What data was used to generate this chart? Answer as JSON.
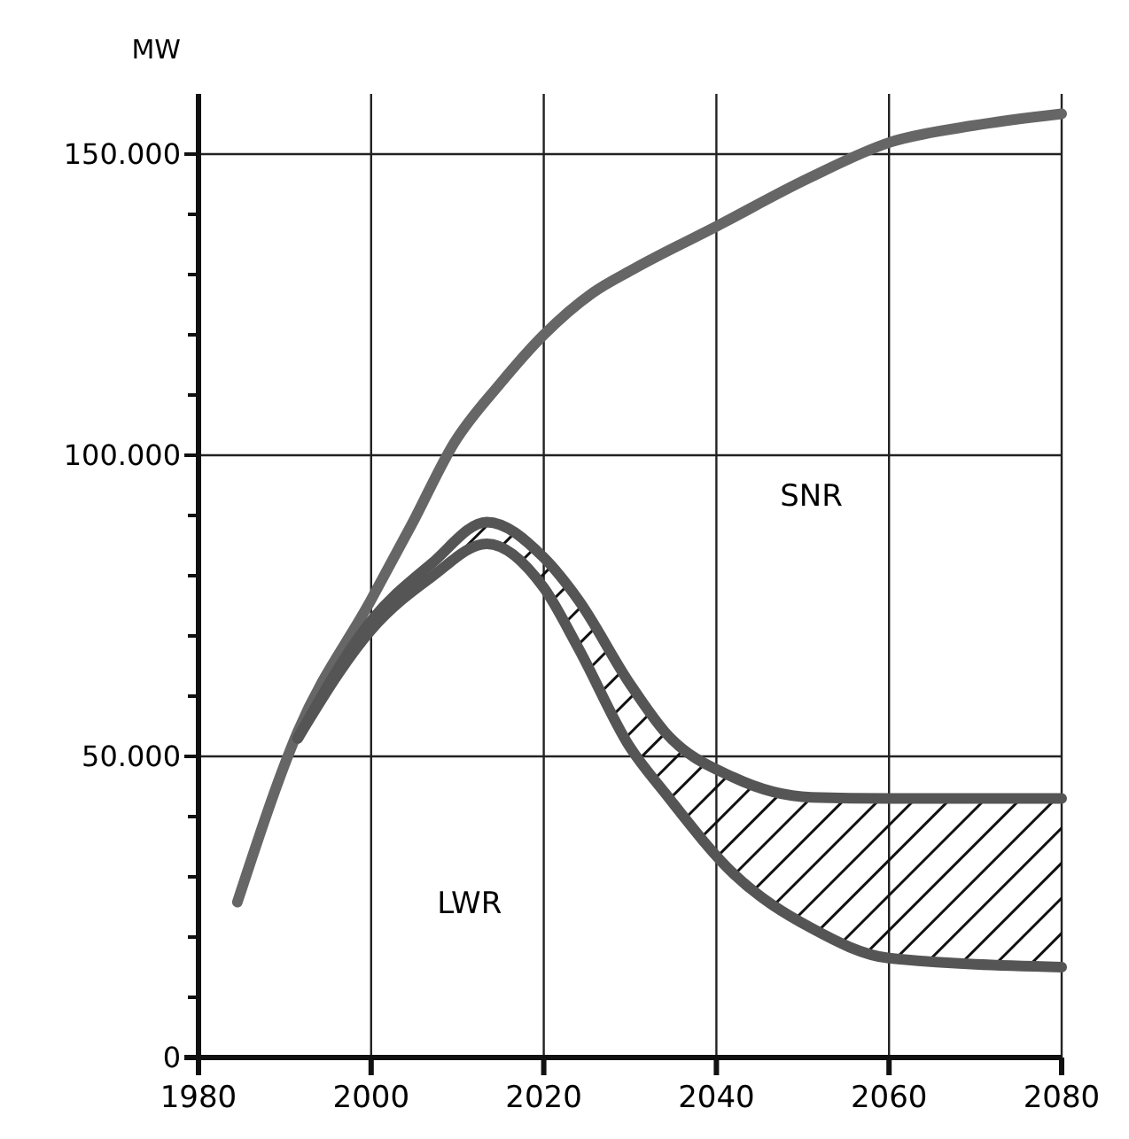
{
  "chart_data": {
    "type": "line",
    "ylabel": "MW",
    "xlim": [
      1980,
      2080
    ],
    "xticks": [
      1980,
      2000,
      2020,
      2040,
      2060,
      2080
    ],
    "ylim": [
      0,
      160000
    ],
    "yticks": [
      {
        "value": 0,
        "label": "0"
      },
      {
        "value": 10000,
        "label": null
      },
      {
        "value": 20000,
        "label": null
      },
      {
        "value": 30000,
        "label": null
      },
      {
        "value": 40000,
        "label": null
      },
      {
        "value": 50000,
        "label": "50.000"
      },
      {
        "value": 60000,
        "label": null
      },
      {
        "value": 70000,
        "label": null
      },
      {
        "value": 80000,
        "label": null
      },
      {
        "value": 90000,
        "label": null
      },
      {
        "value": 100000,
        "label": "100.000"
      },
      {
        "value": 110000,
        "label": null
      },
      {
        "value": 120000,
        "label": null
      },
      {
        "value": 130000,
        "label": null
      },
      {
        "value": 140000,
        "label": null
      },
      {
        "value": 150000,
        "label": "150.000"
      }
    ],
    "grid": true,
    "series": [
      {
        "color": "#666666",
        "x": [
          1984.5,
          1991.5,
          2000,
          2004.7,
          2009.6,
          2014.9,
          2020,
          2025.6,
          2030.5,
          2040,
          2050.7,
          2060.2,
          2069.6,
          2080
        ],
        "values": [
          25800,
          54100,
          76000,
          88500,
          102000,
          111800,
          120000,
          126900,
          131000,
          138000,
          146000,
          152000,
          154700,
          156700
        ]
      },
      {
        "color": "#555555",
        "x": [
          1991.5,
          2000,
          2007,
          2013.4,
          2020,
          2024,
          2030,
          2034,
          2042,
          2051,
          2060,
          2080
        ],
        "values": [
          53000,
          72500,
          82000,
          88900,
          83000,
          76000,
          62000,
          54100,
          46500,
          43200,
          43000,
          43000
        ],
        "upper": [
          53000,
          72500,
          82000,
          88900,
          83000,
          76000,
          62000,
          54100,
          46500,
          43200,
          43000,
          43000
        ],
        "lower": [
          53000,
          71000,
          79800,
          85300,
          78000,
          68000,
          51500,
          44000,
          30500,
          21500,
          16500,
          15000
        ]
      },
      {
        "color": "#555555",
        "x": [
          1991.5,
          2000,
          2007,
          2013.4,
          2020,
          2024,
          2030,
          2034,
          2042,
          2051,
          2060,
          2080
        ],
        "values": [
          53000,
          71000,
          79800,
          85300,
          78000,
          68000,
          51500,
          44000,
          30500,
          21500,
          16500,
          15000
        ]
      }
    ],
    "annotations": [
      "SNR",
      "LWR"
    ]
  }
}
